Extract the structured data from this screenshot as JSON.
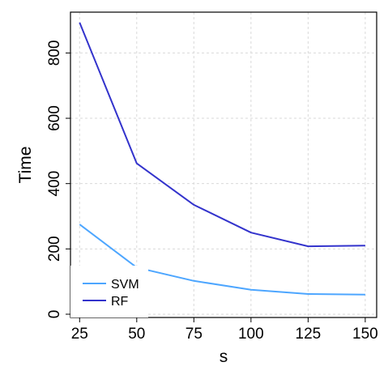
{
  "chart_data": {
    "type": "line",
    "xlabel": "s",
    "ylabel": "Time",
    "x": [
      25,
      50,
      75,
      100,
      125,
      150
    ],
    "xlim": [
      21,
      155
    ],
    "ylim": [
      -10,
      925
    ],
    "xticks": [
      25,
      50,
      75,
      100,
      125,
      150
    ],
    "yticks": [
      0,
      200,
      400,
      600,
      800
    ],
    "grid": true,
    "legend_position": "bottom-left",
    "series": [
      {
        "name": "SVM",
        "color": "#4da6ff",
        "values": [
          275,
          143,
          102,
          75,
          62,
          60
        ]
      },
      {
        "name": "RF",
        "color": "#3333cc",
        "values": [
          893,
          462,
          335,
          250,
          208,
          210
        ]
      }
    ]
  }
}
